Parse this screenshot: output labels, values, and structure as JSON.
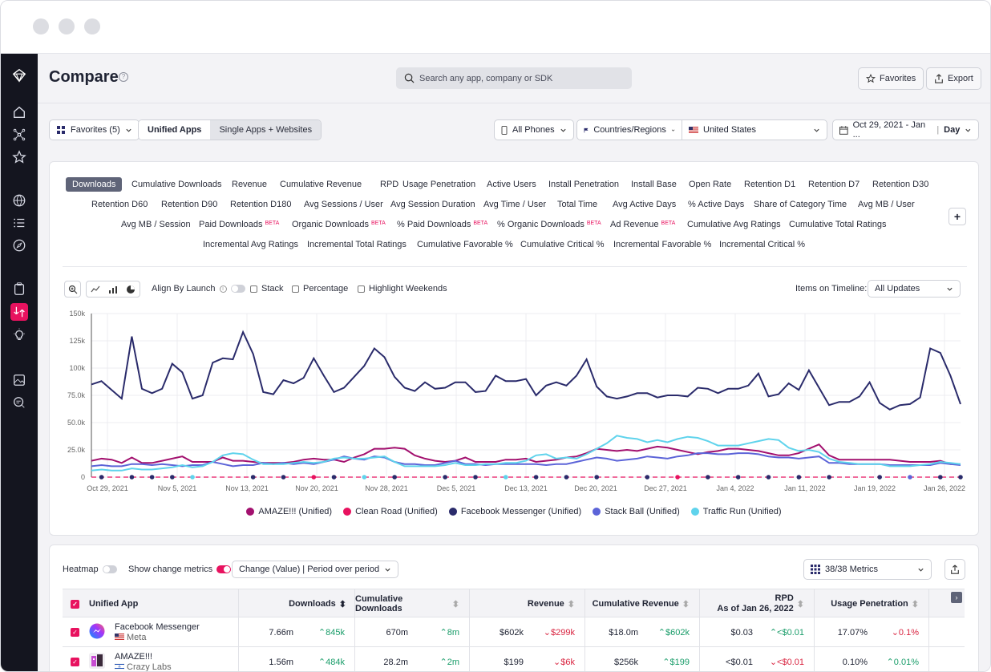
{
  "page": {
    "title": "Compare",
    "search_placeholder": "Search any app, company or SDK",
    "favorites_label": "Favorites",
    "export_label": "Export"
  },
  "toolbar": {
    "favorites_dropdown": "Favorites (5)",
    "mode_unified": "Unified Apps",
    "mode_single": "Single Apps + Websites",
    "device": "All Phones",
    "region_type": "Countries/Regions",
    "country": "United States",
    "date_range": "Oct 29, 2021 - Jan ...",
    "granularity": "Day"
  },
  "metrics": {
    "selected": "Downloads",
    "row1": [
      "Cumulative Downloads",
      "Revenue",
      "Cumulative Revenue",
      "RPD",
      "Usage Penetration",
      "Active Users",
      "Install Penetration",
      "Install Base",
      "Open Rate",
      "Retention D1",
      "Retention D7",
      "Retention D30"
    ],
    "row2": [
      "Retention D60",
      "Retention D90",
      "Retention D180",
      "Avg Sessions / User",
      "Avg Session Duration",
      "Avg Time / User",
      "Total Time",
      "Avg Active Days",
      "% Active Days",
      "Share of Category Time",
      "Avg MB / User"
    ],
    "row3": [
      "Avg MB / Session",
      "Paid Downloads",
      "Organic Downloads",
      "% Paid Downloads",
      "% Organic Downloads",
      "Ad Revenue",
      "Cumulative Avg Ratings",
      "Cumulative Total Ratings"
    ],
    "row4": [
      "Incremental Avg Ratings",
      "Incremental Total Ratings",
      "Cumulative Favorable %",
      "Cumulative Critical %",
      "Incremental Favorable %",
      "Incremental Critical %"
    ],
    "beta_label": "BETA"
  },
  "chart_controls": {
    "align_label": "Align By Launch",
    "stack_label": "Stack",
    "percentage_label": "Percentage",
    "weekends_label": "Highlight Weekends",
    "timeline_label": "Items on Timeline:",
    "timeline_value": "All Updates"
  },
  "chart_data": {
    "type": "line",
    "ylim": [
      0,
      150000
    ],
    "y_ticks": [
      "0",
      "25.0k",
      "50.0k",
      "75.0k",
      "100k",
      "125k",
      "150k"
    ],
    "x_ticks": [
      "Oct 29, 2021",
      "Nov 5, 2021",
      "Nov 13, 2021",
      "Nov 20, 2021",
      "Nov 28, 2021",
      "Dec 5, 2021",
      "Dec 13, 2021",
      "Dec 20, 2021",
      "Dec 27, 2021",
      "Jan 4, 2022",
      "Jan 11, 2022",
      "Jan 19, 2022",
      "Jan 26, 2022"
    ],
    "series": [
      {
        "name": "AMAZE!!! (Unified)",
        "color": "#a3116f",
        "values": [
          15000,
          17000,
          16000,
          13000,
          18000,
          13000,
          13000,
          15000,
          17000,
          19000,
          14000,
          14000,
          14000,
          18000,
          15000,
          15000,
          14000,
          13000,
          13000,
          13000,
          14000,
          16000,
          17000,
          16000,
          16000,
          14000,
          18000,
          21000,
          26000,
          26000,
          27000,
          26000,
          20000,
          17000,
          15000,
          14000,
          15000,
          18000,
          14000,
          14000,
          14000,
          16000,
          16000,
          17000,
          14000,
          15000,
          16000,
          18000,
          19000,
          22000,
          26000,
          25000,
          24000,
          25000,
          24000,
          26000,
          28000,
          27000,
          25000,
          23000,
          21000,
          23000,
          24000,
          26000,
          26000,
          25000,
          24000,
          22000,
          20000,
          20000,
          22000,
          26000,
          30000,
          20000,
          16000,
          16000,
          16000,
          16000,
          16000,
          16000,
          15000,
          14000,
          14000,
          14000,
          15000,
          12000,
          12000
        ]
      },
      {
        "name": "Clean Road (Unified)",
        "color": "#e8125f",
        "values": [
          0,
          0,
          0,
          0,
          0,
          0,
          0,
          0,
          0,
          0,
          0,
          0,
          0,
          0,
          0,
          0,
          0,
          0,
          0,
          0,
          0,
          0,
          0,
          0,
          0,
          0,
          0,
          0,
          0,
          0,
          0,
          0,
          0,
          0,
          0,
          0,
          0,
          0,
          0,
          0,
          0,
          0,
          0,
          0,
          0,
          0,
          0,
          0,
          0,
          0,
          0,
          0,
          0,
          0,
          0,
          0,
          0,
          0,
          0,
          0,
          0,
          0,
          0,
          0,
          0,
          0,
          0,
          0,
          0,
          0,
          0,
          0,
          0,
          0,
          0,
          0,
          0,
          0,
          0,
          0,
          0,
          0,
          0,
          0,
          0,
          0,
          0
        ]
      },
      {
        "name": "Facebook Messenger (Unified)",
        "color": "#2a2b6b",
        "values": [
          85000,
          88000,
          80000,
          72000,
          129000,
          81000,
          77000,
          81000,
          104000,
          96000,
          72000,
          75000,
          105000,
          109000,
          108000,
          133000,
          113000,
          78000,
          76000,
          89000,
          86000,
          91000,
          109000,
          93000,
          78000,
          82000,
          92000,
          102000,
          118000,
          110000,
          92000,
          82000,
          79000,
          87000,
          81000,
          82000,
          87000,
          87000,
          78000,
          79000,
          93000,
          88000,
          88000,
          90000,
          75000,
          84000,
          87000,
          84000,
          93000,
          108000,
          83000,
          74000,
          72000,
          74000,
          77000,
          77000,
          73000,
          75000,
          75000,
          74000,
          82000,
          81000,
          77000,
          81000,
          81000,
          84000,
          95000,
          74000,
          76000,
          86000,
          80000,
          98000,
          82000,
          66000,
          69000,
          69000,
          74000,
          87000,
          68000,
          62000,
          66000,
          67000,
          73000,
          118000,
          114000,
          93000,
          67000
        ]
      },
      {
        "name": "Stack Ball (Unified)",
        "color": "#5c64d8",
        "values": [
          10000,
          11000,
          10000,
          10000,
          12000,
          12000,
          11000,
          12000,
          11000,
          10000,
          11000,
          11000,
          14000,
          12000,
          10000,
          11000,
          11000,
          13000,
          12000,
          13000,
          12000,
          13000,
          12000,
          14000,
          16000,
          19000,
          17000,
          16000,
          19000,
          18000,
          14000,
          12000,
          12000,
          11000,
          11000,
          13000,
          15000,
          12000,
          12000,
          11000,
          12000,
          12000,
          12000,
          12000,
          12000,
          11000,
          12000,
          12000,
          14000,
          16000,
          18000,
          17000,
          15000,
          16000,
          17000,
          19000,
          18000,
          17000,
          19000,
          20000,
          22000,
          22000,
          21000,
          21000,
          22000,
          22000,
          21000,
          19000,
          18000,
          18000,
          17000,
          18000,
          19000,
          13000,
          13000,
          12000,
          12000,
          12000,
          12000,
          11000,
          11000,
          11000,
          11000,
          11000,
          13000,
          12000,
          11000
        ]
      },
      {
        "name": "Traffic Run (Unified)",
        "color": "#5fd3ec",
        "values": [
          6000,
          7000,
          6000,
          6000,
          8000,
          7000,
          7000,
          8000,
          9000,
          11000,
          9000,
          10000,
          14000,
          20000,
          22000,
          21000,
          16000,
          12000,
          12000,
          12000,
          13000,
          14000,
          13000,
          14000,
          17000,
          18000,
          17000,
          17000,
          18000,
          19000,
          14000,
          10000,
          10000,
          10000,
          10000,
          11000,
          13000,
          11000,
          11000,
          12000,
          12000,
          13000,
          13000,
          15000,
          20000,
          21000,
          17000,
          18000,
          17000,
          21000,
          26000,
          31000,
          38000,
          36000,
          35000,
          32000,
          34000,
          32000,
          35000,
          37000,
          36000,
          33000,
          29000,
          29000,
          29000,
          31000,
          33000,
          35000,
          34000,
          27000,
          24000,
          25000,
          23000,
          17000,
          14000,
          13000,
          12000,
          12000,
          12000,
          10000,
          10000,
          10000,
          11000,
          12000,
          14000,
          13000,
          12000
        ]
      }
    ]
  },
  "table_controls": {
    "heatmap_label": "Heatmap",
    "change_label": "Show change metrics",
    "change_mode": "Change (Value) | Period over period",
    "metrics_count": "38/38 Metrics"
  },
  "table": {
    "headers": [
      "Unified App",
      "Downloads",
      "Cumulative Downloads",
      "Revenue",
      "Cumulative Revenue",
      "RPD",
      "As of Jan 26, 2022",
      "Usage Penetration"
    ],
    "rows": [
      {
        "app": "Facebook Messenger",
        "publisher": "Meta",
        "downloads": "7.66m",
        "downloads_chg": "845k",
        "cum_downloads": "670m",
        "cum_downloads_chg": "8m",
        "revenue": "$602k",
        "revenue_chg": "$299k",
        "cum_revenue": "$18.0m",
        "cum_revenue_chg": "$602k",
        "rpd": "$0.03",
        "rpd_chg": "<$0.01",
        "usage": "17.07%",
        "usage_chg": "0.1%"
      },
      {
        "app": "AMAZE!!!",
        "publisher": "Crazy Labs",
        "downloads": "1.56m",
        "downloads_chg": "484k",
        "cum_downloads": "28.2m",
        "cum_downloads_chg": "2m",
        "revenue": "$199",
        "revenue_chg": "$6k",
        "cum_revenue": "$256k",
        "cum_revenue_chg": "$199",
        "rpd": "<$0.01",
        "rpd_chg": "<$0.01",
        "usage": "0.10%",
        "usage_chg": "0.01%"
      }
    ]
  }
}
